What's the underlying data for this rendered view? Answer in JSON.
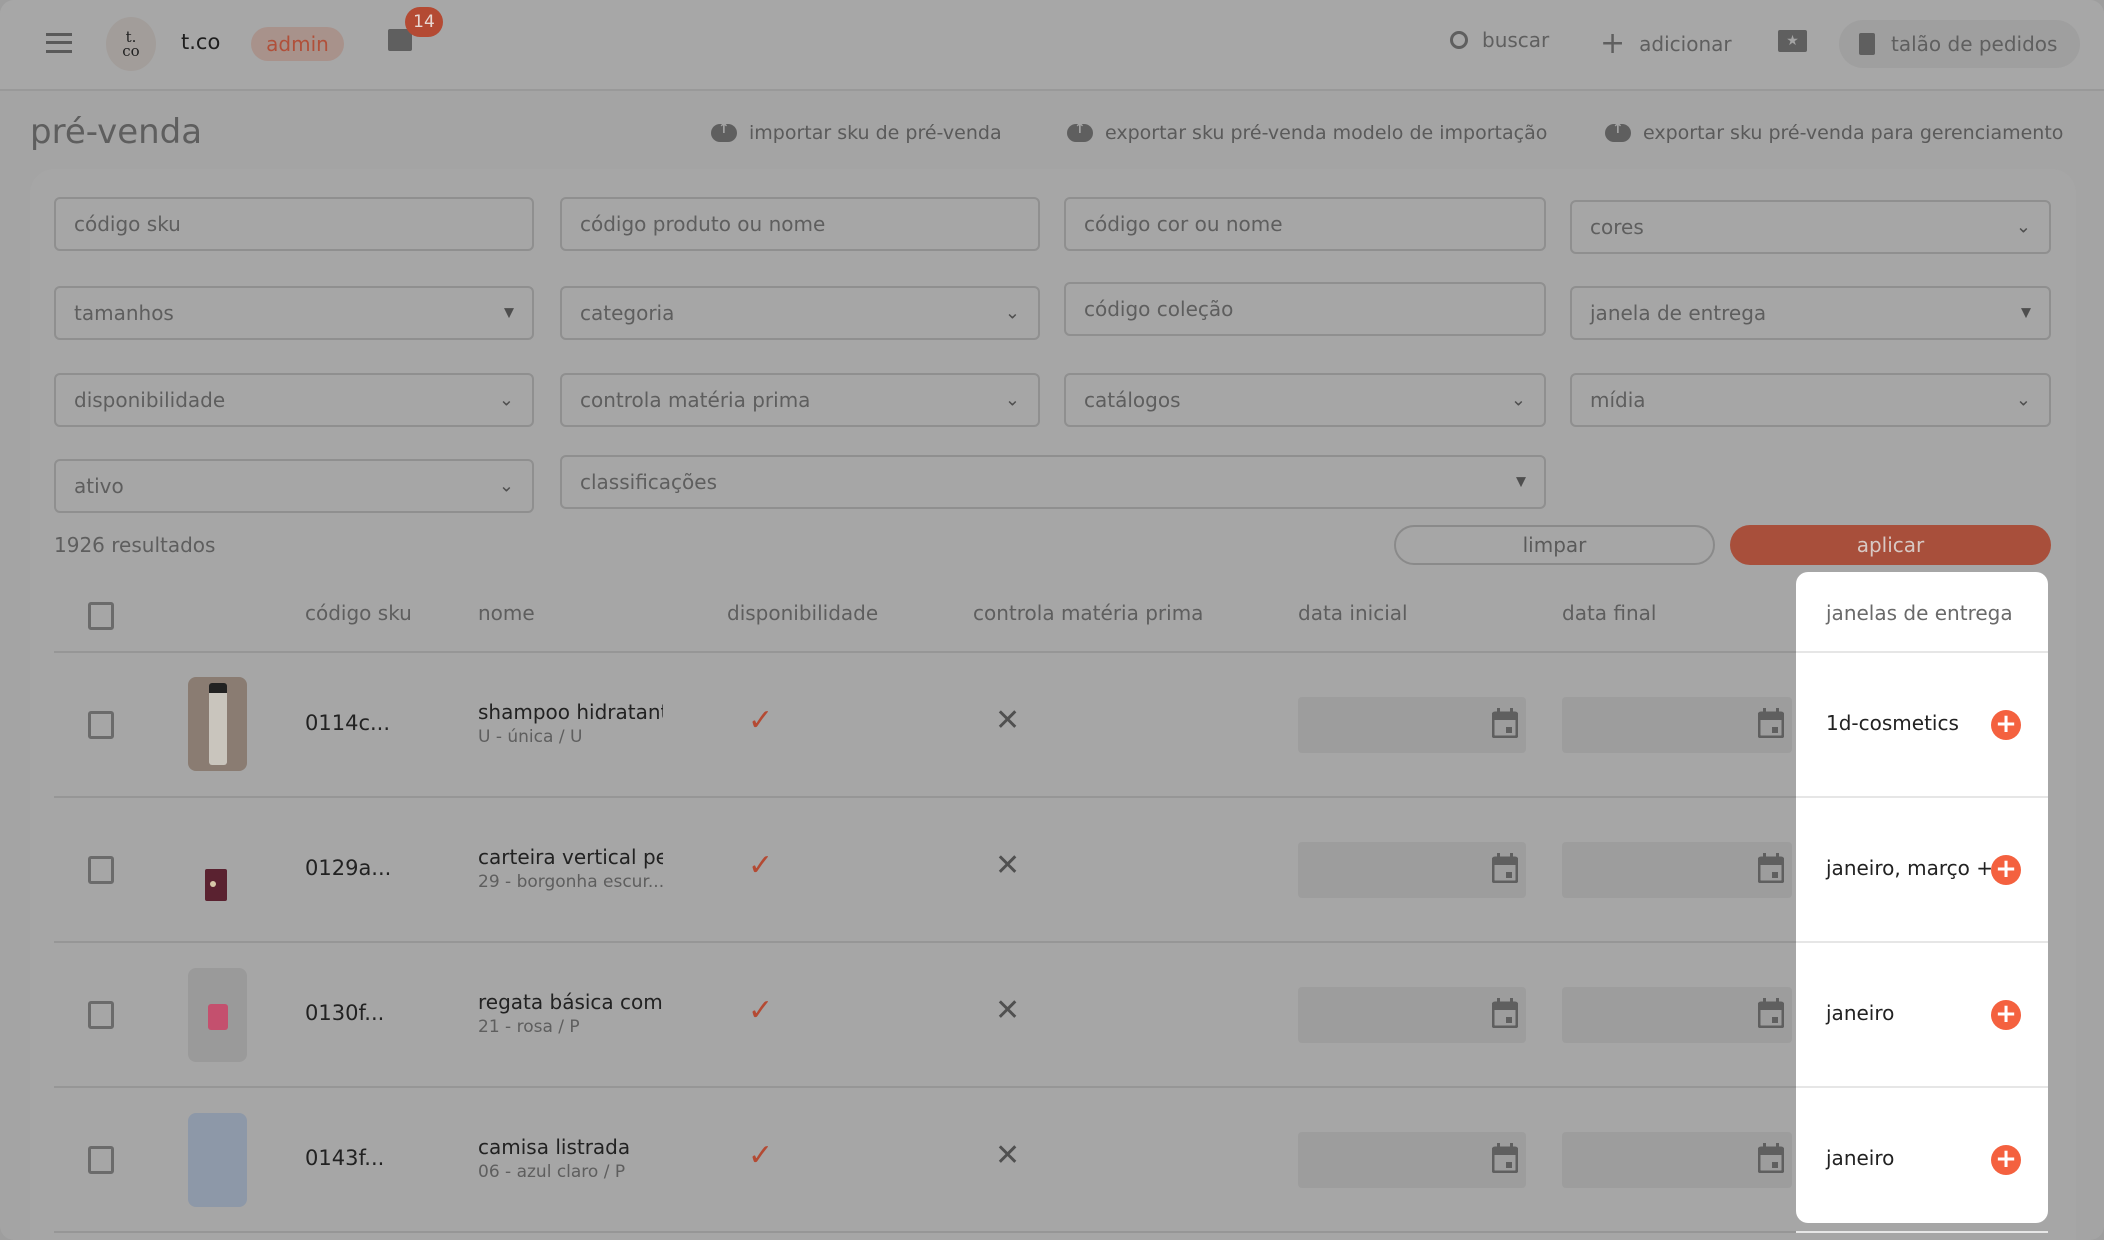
{
  "header": {
    "brand": "t.co",
    "logo_text": "t.\nco",
    "role_badge": "admin",
    "notifications": "14",
    "search_label": "buscar",
    "add_label": "adicionar",
    "order_book_label": "talão de pedidos"
  },
  "page": {
    "title": "pré-venda",
    "actions": [
      "importar sku de pré-venda",
      "exportar sku pré-venda modelo de importação",
      "exportar sku pré-venda para gerenciamento"
    ]
  },
  "filters": {
    "sku_code": "código sku",
    "product": "código produto ou nome",
    "color_code": "código cor ou nome",
    "colors": "cores",
    "sizes": "tamanhos",
    "category": "categoria",
    "collection_code": "código coleção",
    "delivery_window": "janela de entrega",
    "availability": "disponibilidade",
    "raw_material": "controla matéria prima",
    "catalogs": "catálogos",
    "media": "mídia",
    "active": "ativo",
    "classifications": "classificações"
  },
  "results": "1926 resultados",
  "buttons": {
    "clear": "limpar",
    "apply": "aplicar"
  },
  "colors": {
    "accent": "#b44a33",
    "apply": "#a84f3b",
    "plus": "#f4613f"
  },
  "table": {
    "headers": [
      "código sku",
      "nome",
      "disponibilidade",
      "controla matéria prima",
      "data inicial",
      "data final",
      "janelas de entrega"
    ],
    "rows": [
      {
        "sku": "0114c...",
        "name": "shampoo hidratante",
        "variant": "U - única / U",
        "available": true,
        "raw_material": false,
        "windows": "1d-cosmetics"
      },
      {
        "sku": "0129a...",
        "name": "carteira vertical pec",
        "variant": "29 - borgonha escur...",
        "available": true,
        "raw_material": false,
        "windows": "janeiro, março +"
      },
      {
        "sku": "0130f...",
        "name": "regata básica com r",
        "variant": "21 - rosa / P",
        "available": true,
        "raw_material": false,
        "windows": "janeiro"
      },
      {
        "sku": "0143f...",
        "name": "camisa listrada",
        "variant": "06 - azul claro / P",
        "available": true,
        "raw_material": false,
        "windows": "janeiro"
      }
    ]
  }
}
